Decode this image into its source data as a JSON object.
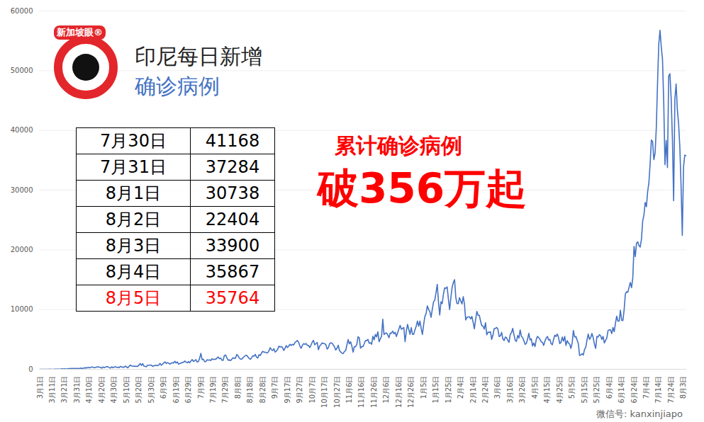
{
  "chart_data": {
    "type": "line",
    "title": "印尼每日新增",
    "subtitle": "确诊病例",
    "logo": "新加坡眼®",
    "watermark": "微信号: kanxinjiapo",
    "annotations": [
      "累计确诊病例",
      "破356万起"
    ],
    "table": {
      "rows": [
        [
          "7月30日",
          41168
        ],
        [
          "7月31日",
          37284
        ],
        [
          "8月1日",
          30738
        ],
        [
          "8月2日",
          22404
        ],
        [
          "8月3日",
          33900
        ],
        [
          "8月4日",
          35867
        ],
        [
          "8月5日",
          35764
        ]
      ]
    },
    "color": "#4472c4",
    "ylim": [
      0,
      60000
    ],
    "yticks": [
      0,
      10000,
      20000,
      30000,
      40000,
      50000,
      60000
    ],
    "grid": true,
    "categories": [
      "3月1日",
      null,
      null,
      null,
      null,
      null,
      null,
      null,
      null,
      null,
      "3月11日",
      null,
      null,
      null,
      null,
      null,
      null,
      null,
      null,
      null,
      "3月21日",
      null,
      null,
      null,
      null,
      null,
      null,
      null,
      null,
      null,
      "3月31日",
      null,
      null,
      null,
      null,
      null,
      null,
      null,
      null,
      null,
      "4月10日",
      null,
      null,
      null,
      null,
      null,
      null,
      null,
      null,
      null,
      "4月20日",
      null,
      null,
      null,
      null,
      null,
      null,
      null,
      null,
      null,
      "4月30日",
      null,
      null,
      null,
      null,
      null,
      null,
      null,
      null,
      null,
      "5月10日",
      null,
      null,
      null,
      null,
      null,
      null,
      null,
      null,
      null,
      "5月20日",
      null,
      null,
      null,
      null,
      null,
      null,
      null,
      null,
      null,
      "5月30日",
      null,
      null,
      null,
      null,
      null,
      null,
      null,
      null,
      null,
      "6月9日",
      null,
      null,
      null,
      null,
      null,
      null,
      null,
      null,
      null,
      "6月19日",
      null,
      null,
      null,
      null,
      null,
      null,
      null,
      null,
      null,
      "6月29日",
      null,
      null,
      null,
      null,
      null,
      null,
      null,
      null,
      null,
      "7月9日",
      null,
      null,
      null,
      null,
      null,
      null,
      null,
      null,
      null,
      "7月19日",
      null,
      null,
      null,
      null,
      null,
      null,
      null,
      null,
      null,
      "7月29日",
      null,
      null,
      null,
      null,
      null,
      null,
      null,
      null,
      null,
      "8月8日",
      null,
      null,
      null,
      null,
      null,
      null,
      null,
      null,
      null,
      "8月18日",
      null,
      null,
      null,
      null,
      null,
      null,
      null,
      null,
      null,
      "8月28日",
      null,
      null,
      null,
      null,
      null,
      null,
      null,
      null,
      null,
      "9月7日",
      null,
      null,
      null,
      null,
      null,
      null,
      null,
      null,
      null,
      "9月17日",
      null,
      null,
      null,
      null,
      null,
      null,
      null,
      null,
      null,
      "9月27日",
      null,
      null,
      null,
      null,
      null,
      null,
      null,
      null,
      null,
      "10月7日",
      null,
      null,
      null,
      null,
      null,
      null,
      null,
      null,
      null,
      "10月17日",
      null,
      null,
      null,
      null,
      null,
      null,
      null,
      null,
      null,
      "10月27日",
      null,
      null,
      null,
      null,
      null,
      null,
      null,
      null,
      null,
      "11月6日",
      null,
      null,
      null,
      null,
      null,
      null,
      null,
      null,
      null,
      "11月16日",
      null,
      null,
      null,
      null,
      null,
      null,
      null,
      null,
      null,
      "11月26日",
      null,
      null,
      null,
      null,
      null,
      null,
      null,
      null,
      null,
      "12月6日",
      null,
      null,
      null,
      null,
      null,
      null,
      null,
      null,
      null,
      "12月16日",
      null,
      null,
      null,
      null,
      null,
      null,
      null,
      null,
      null,
      "12月26日",
      null,
      null,
      null,
      null,
      null,
      null,
      null,
      null,
      null,
      "1月5日",
      null,
      null,
      null,
      null,
      null,
      null,
      null,
      null,
      null,
      "1月15日",
      null,
      null,
      null,
      null,
      null,
      null,
      null,
      null,
      null,
      "1月25日",
      null,
      null,
      null,
      null,
      null,
      null,
      null,
      null,
      null,
      "2月4日",
      null,
      null,
      null,
      null,
      null,
      null,
      null,
      null,
      null,
      "2月14日",
      null,
      null,
      null,
      null,
      null,
      null,
      null,
      null,
      null,
      "2月24日",
      null,
      null,
      null,
      null,
      null,
      null,
      null,
      null,
      null,
      "3月6日",
      null,
      null,
      null,
      null,
      null,
      null,
      null,
      null,
      null,
      "3月16日",
      null,
      null,
      null,
      null,
      null,
      null,
      null,
      null,
      null,
      "3月26日",
      null,
      null,
      null,
      null,
      null,
      null,
      null,
      null,
      null,
      "4月5日",
      null,
      null,
      null,
      null,
      null,
      null,
      null,
      null,
      null,
      "4月15日",
      null,
      null,
      null,
      null,
      null,
      null,
      null,
      null,
      null,
      "4月25日",
      null,
      null,
      null,
      null,
      null,
      null,
      null,
      null,
      null,
      "5月5日",
      null,
      null,
      null,
      null,
      null,
      null,
      null,
      null,
      null,
      "5月15日",
      null,
      null,
      null,
      null,
      null,
      null,
      null,
      null,
      null,
      "5月25日",
      null,
      null,
      null,
      null,
      null,
      null,
      null,
      null,
      null,
      "6月4日",
      null,
      null,
      null,
      null,
      null,
      null,
      null,
      null,
      null,
      "6月14日",
      null,
      null,
      null,
      null,
      null,
      null,
      null,
      null,
      null,
      "6月24日",
      null,
      null,
      null,
      null,
      null,
      null,
      null,
      null,
      null,
      "7月4日",
      null,
      null,
      null,
      null,
      null,
      null,
      null,
      null,
      null,
      "7月14日",
      null,
      null,
      null,
      null,
      null,
      null,
      null,
      null,
      null,
      "7月24日",
      null,
      null,
      null,
      null,
      null,
      null,
      null,
      null,
      null,
      "8月3日",
      null,
      null
    ],
    "values": [
      0,
      2,
      0,
      0,
      0,
      2,
      2,
      0,
      13,
      8,
      7,
      0,
      35,
      27,
      21,
      17,
      38,
      55,
      82,
      60,
      81,
      64,
      65,
      106,
      105,
      103,
      153,
      109,
      130,
      129,
      114,
      149,
      113,
      196,
      106,
      181,
      218,
      247,
      218,
      337,
      219,
      330,
      399,
      316,
      282,
      297,
      380,
      407,
      325,
      327,
      185,
      375,
      283,
      357,
      436,
      396,
      275,
      214,
      415,
      260,
      347,
      433,
      292,
      349,
      271,
      484,
      367,
      338,
      336,
      533,
      387,
      233,
      484,
      689,
      568,
      490,
      529,
      489,
      496,
      486,
      693,
      973,
      634,
      949,
      526,
      479,
      415,
      686,
      687,
      678,
      700,
      467,
      609,
      609,
      684,
      585,
      703,
      993,
      672,
      847,
      1043,
      1241,
      979,
      1111,
      1014,
      857,
      1017,
      1106,
      1031,
      1331,
      1041,
      1226,
      862,
      954,
      1051,
      1113,
      1178,
      1385,
      1198,
      1082,
      1293,
      1082,
      1385,
      1624,
      1301,
      1447,
      1607,
      1209,
      1268,
      1853,
      2657,
      1611,
      1681,
      1281,
      1282,
      1591,
      1522,
      1574,
      1462,
      1752,
      1639,
      1693,
      1655,
      1882,
      2051,
      1761,
      1868,
      1525,
      1491,
      2304,
      2381,
      1904,
      1519,
      1560,
      1462,
      1679,
      1922,
      1815,
      1882,
      2473,
      2277,
      1893,
      1687,
      1693,
      1942,
      2098,
      2307,
      2345,
      2081,
      1821,
      1673,
      1902,
      2266,
      2197,
      2495,
      2037,
      1877,
      2447,
      2306,
      2719,
      3003,
      2858,
      2858,
      2743,
      2775,
      3075,
      3622,
      3269,
      3128,
      3444,
      2880,
      3046,
      3307,
      3861,
      3737,
      3806,
      3636,
      3141,
      3507,
      3963,
      3635,
      3891,
      4168,
      3989,
      4176,
      4071,
      4465,
      4634,
      4823,
      4494,
      3874,
      3509,
      4002,
      4284,
      4174,
      4317,
      4007,
      3992,
      3622,
      4056,
      4538,
      4850,
      4094,
      4294,
      4497,
      3267,
      3906,
      4127,
      4411,
      4301,
      4301,
      4105,
      3373,
      3602,
      4267,
      4432,
      4369,
      4070,
      3732,
      3222,
      3520,
      4029,
      3143,
      2897,
      2696,
      2618,
      2973,
      3143,
      4065,
      4969,
      4262,
      4598,
      3880,
      2853,
      3779,
      3770,
      4173,
      5444,
      5272,
      3535,
      3807,
      3796,
      4265,
      4798,
      4792,
      4998,
      4360,
      4442,
      4192,
      5534,
      4917,
      5828,
      5418,
      6267,
      4617,
      5092,
      5533,
      8369,
      5803,
      6027,
      6089,
      5754,
      5292,
      6058,
      6033,
      6388,
      5925,
      6189,
      5489,
      6120,
      6725,
      7354,
      6689,
      6848,
      6982,
      4617,
      6347,
      7514,
      6664,
      5854,
      6982,
      5854,
      5854,
      6598,
      7210,
      8074,
      7203,
      8072,
      6877,
      5826,
      7445,
      8854,
      9321,
      10617,
      10046,
      9640,
      8692,
      10047,
      11278,
      11557,
      12818,
      14224,
      11287,
      9086,
      11287,
      10994,
      12568,
      13632,
      13542,
      13789,
      11788,
      9994,
      11948,
      13695,
      14518,
      14998,
      12001,
      10994,
      10994,
      11984,
      11434,
      10933,
      12156,
      10880,
      8242,
      8700,
      8776,
      8776,
      8435,
      8844,
      7877,
      6765,
      8331,
      9687,
      9039,
      9039,
      8054,
      7300,
      7230,
      6708,
      7800,
      5767,
      6211,
      6185,
      6264,
      5000,
      5712,
      6808,
      6825,
      7000,
      6736,
      5467,
      5589,
      6172,
      5100,
      4803,
      5389,
      5270,
      4844,
      4509,
      5868,
      6102,
      6840,
      5796,
      4817,
      4672,
      5656,
      5227,
      6585,
      5514,
      5300,
      4760,
      4167,
      4323,
      5073,
      6000,
      4900,
      5100,
      3893,
      4400,
      3800,
      5000,
      5500,
      5300,
      5000,
      4600,
      4500,
      3990,
      4700,
      5200,
      5500,
      4900,
      5000,
      4300,
      4100,
      5000,
      5700,
      5500,
      5900,
      5300,
      4300,
      4500,
      5400,
      4700,
      5500,
      4000,
      4800,
      4400,
      4200,
      3500,
      4369,
      6500,
      5400,
      5500,
      4900,
      4300,
      2300,
      2400,
      2600,
      2385,
      3300,
      3700,
      4900,
      5900,
      5000,
      5300,
      6000,
      5300,
      4200,
      3500,
      5500,
      5400,
      5800,
      5600,
      5000,
      5500,
      4400,
      4824,
      5246,
      6486,
      6594,
      6592,
      5979,
      6993,
      6294,
      7725,
      8892,
      8058,
      8083,
      9868,
      8189,
      8161,
      9944,
      12624,
      12990,
      12906,
      13737,
      14536,
      13668,
      15308,
      20574,
      18872,
      21095,
      21342,
      20694,
      20467,
      21807,
      24836,
      25830,
      27913,
      27233,
      29745,
      31189,
      34379,
      38391,
      38124,
      35094,
      36197,
      40427,
      47899,
      54517,
      56757,
      54000,
      51952,
      44721,
      34257,
      38325,
      33772,
      49071,
      49509,
      45416,
      38679,
      28228,
      45203,
      47791,
      43479,
      41168,
      37284,
      30738,
      22404,
      33900,
      35867,
      35764
    ]
  }
}
